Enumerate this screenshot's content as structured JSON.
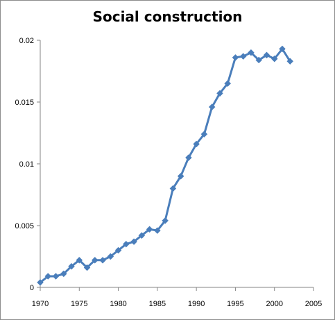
{
  "chart_data": {
    "type": "line",
    "title": "Social construction",
    "xlabel": "",
    "ylabel": "",
    "xlim": [
      1970,
      2005
    ],
    "ylim": [
      0,
      0.02
    ],
    "x_ticks": [
      "1970",
      "1975",
      "1980",
      "1985",
      "1990",
      "1995",
      "2000",
      "2005"
    ],
    "y_ticks": [
      "0",
      "0.005",
      "0.01",
      "0.015",
      "0.02"
    ],
    "x_tick_values": [
      1970,
      1975,
      1980,
      1985,
      1990,
      1995,
      2000,
      2005
    ],
    "y_tick_values": [
      0,
      0.005,
      0.01,
      0.015,
      0.02
    ],
    "grid": false,
    "legend": "none",
    "series": [
      {
        "color": "#4a7ebb",
        "marker": "diamond",
        "x": [
          1970,
          1971,
          1972,
          1973,
          1974,
          1975,
          1976,
          1977,
          1978,
          1979,
          1980,
          1981,
          1982,
          1983,
          1984,
          1985,
          1986,
          1987,
          1988,
          1989,
          1990,
          1991,
          1992,
          1993,
          1994,
          1995,
          1996,
          1997,
          1998,
          1999,
          2000,
          2001,
          2002
        ],
        "y": [
          0.0004,
          0.0009,
          0.0009,
          0.0011,
          0.0017,
          0.0022,
          0.0016,
          0.0022,
          0.0022,
          0.0025,
          0.003,
          0.0035,
          0.0037,
          0.0042,
          0.0047,
          0.0046,
          0.0054,
          0.008,
          0.009,
          0.0105,
          0.0116,
          0.0124,
          0.0146,
          0.0157,
          0.0165,
          0.0186,
          0.0187,
          0.019,
          0.0184,
          0.0188,
          0.0185,
          0.0193,
          0.0183
        ]
      }
    ]
  }
}
